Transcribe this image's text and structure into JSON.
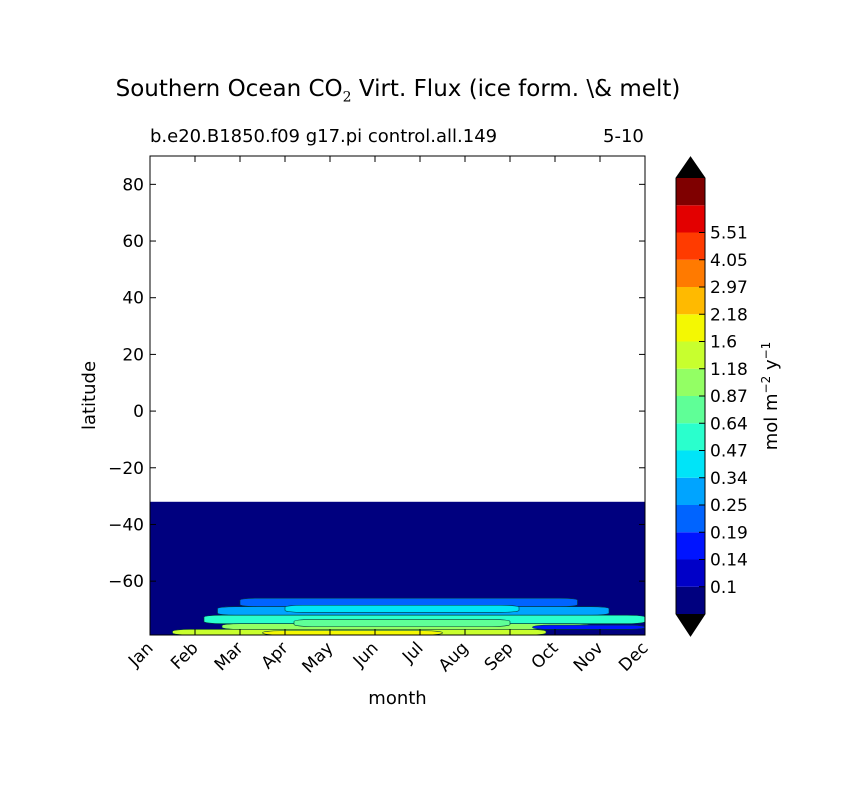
{
  "chart_data": {
    "type": "heatmap",
    "title_main": "Southern Ocean CO",
    "title_sub": "2",
    "title_rest": " Virt. Flux (ice form. \\& melt)",
    "subtitle_left": "b.e20.B1850.f09 g17.pi control.all.149",
    "subtitle_right": "5-10",
    "xlabel": "month",
    "ylabel": "latitude",
    "x_ticks": [
      "Jan",
      "Feb",
      "Mar",
      "Apr",
      "May",
      "Jun",
      "Jul",
      "Aug",
      "Sep",
      "Oct",
      "Nov",
      "Dec"
    ],
    "y_ticks": [
      80,
      60,
      40,
      20,
      0,
      -20,
      -40,
      -60
    ],
    "y_tick_labels": [
      "80",
      "60",
      "40",
      "20",
      "0",
      "−20",
      "−40",
      "−60"
    ],
    "ylim": [
      -79,
      90
    ],
    "data_extent_lat": [
      -79,
      -32
    ],
    "colorbar": {
      "label_main": "mol m",
      "label_exp1": "−2",
      "label_mid": " y",
      "label_exp2": "−1",
      "levels": [
        "0.1",
        "0.14",
        "0.19",
        "0.25",
        "0.34",
        "0.47",
        "0.64",
        "0.87",
        "1.18",
        "1.6",
        "2.18",
        "2.97",
        "4.05",
        "5.51"
      ],
      "colors": [
        "#00007f",
        "#0000c8",
        "#0014ff",
        "#0064ff",
        "#00a4ff",
        "#00e4f8",
        "#2affcd",
        "#5fff97",
        "#93ff64",
        "#c8ff2e",
        "#f4f802",
        "#ffba00",
        "#ff7a00",
        "#ff3b00",
        "#e30000",
        "#7f0000"
      ],
      "under_color": "#000000",
      "over_color": "#000000"
    },
    "features": [
      {
        "lat_min": -79,
        "lat_max": -32,
        "month_start": 0,
        "month_end": 11,
        "level_index": 0
      },
      {
        "lat_min": -69,
        "lat_max": -66,
        "month_start": 2.0,
        "month_end": 9.5,
        "level_index": 3
      },
      {
        "lat_min": -72,
        "lat_max": -69,
        "month_start": 1.5,
        "month_end": 10.2,
        "level_index": 4
      },
      {
        "lat_min": -75,
        "lat_max": -72,
        "month_start": 1.2,
        "month_end": 11.0,
        "level_index": 6
      },
      {
        "lat_min": -77,
        "lat_max": -75,
        "month_start": 1.6,
        "month_end": 9.8,
        "level_index": 8
      },
      {
        "lat_min": -79,
        "lat_max": -77,
        "month_start": 0.5,
        "month_end": 8.8,
        "level_index": 9
      },
      {
        "lat_min": -79,
        "lat_max": -77.5,
        "month_start": 2.5,
        "month_end": 6.5,
        "level_index": 10
      },
      {
        "lat_min": -76,
        "lat_max": -73.5,
        "month_start": 3.2,
        "month_end": 8.0,
        "level_index": 7
      },
      {
        "lat_min": -71,
        "lat_max": -68.5,
        "month_start": 3.0,
        "month_end": 8.2,
        "level_index": 5
      },
      {
        "lat_min": -77,
        "lat_max": -75.5,
        "month_start": 8.5,
        "month_end": 11.0,
        "level_index": 2
      }
    ]
  }
}
